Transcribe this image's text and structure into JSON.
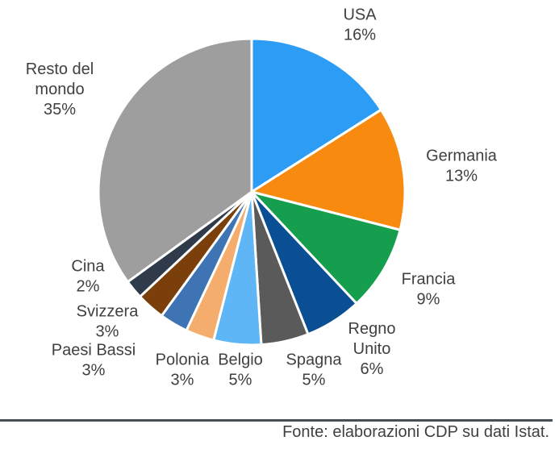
{
  "chart_data": {
    "type": "pie",
    "title": "",
    "slices": [
      {
        "label": [
          "USA"
        ],
        "value": 16,
        "display": "16%",
        "color": "#2d9cf5"
      },
      {
        "label": [
          "Germania"
        ],
        "value": 13,
        "display": "13%",
        "color": "#f88a10"
      },
      {
        "label": [
          "Francia"
        ],
        "value": 9,
        "display": "9%",
        "color": "#159e4d"
      },
      {
        "label": [
          "Regno",
          "Unito"
        ],
        "value": 6,
        "display": "6%",
        "color": "#0a4f93"
      },
      {
        "label": [
          "Spagna"
        ],
        "value": 5,
        "display": "5%",
        "color": "#5a5a5a"
      },
      {
        "label": [
          "Belgio"
        ],
        "value": 5,
        "display": "5%",
        "color": "#5fb6f6"
      },
      {
        "label": [
          "Polonia"
        ],
        "value": 3,
        "display": "3%",
        "color": "#f4ad6c"
      },
      {
        "label": [
          "Paesi Bassi"
        ],
        "value": 3,
        "display": "3%",
        "color": "#3f74b4"
      },
      {
        "label": [
          "Svizzera"
        ],
        "value": 3,
        "display": "3%",
        "color": "#7a3f0a"
      },
      {
        "label": [
          "Cina"
        ],
        "value": 2,
        "display": "2%",
        "color": "#2f3b4a"
      },
      {
        "label": [
          "Resto del",
          "mondo"
        ],
        "value": 35,
        "display": "35%",
        "color": "#9e9e9e"
      }
    ],
    "stroke_color": "#ffffff"
  },
  "source": "Fonte: elaborazioni CDP su dati Istat."
}
